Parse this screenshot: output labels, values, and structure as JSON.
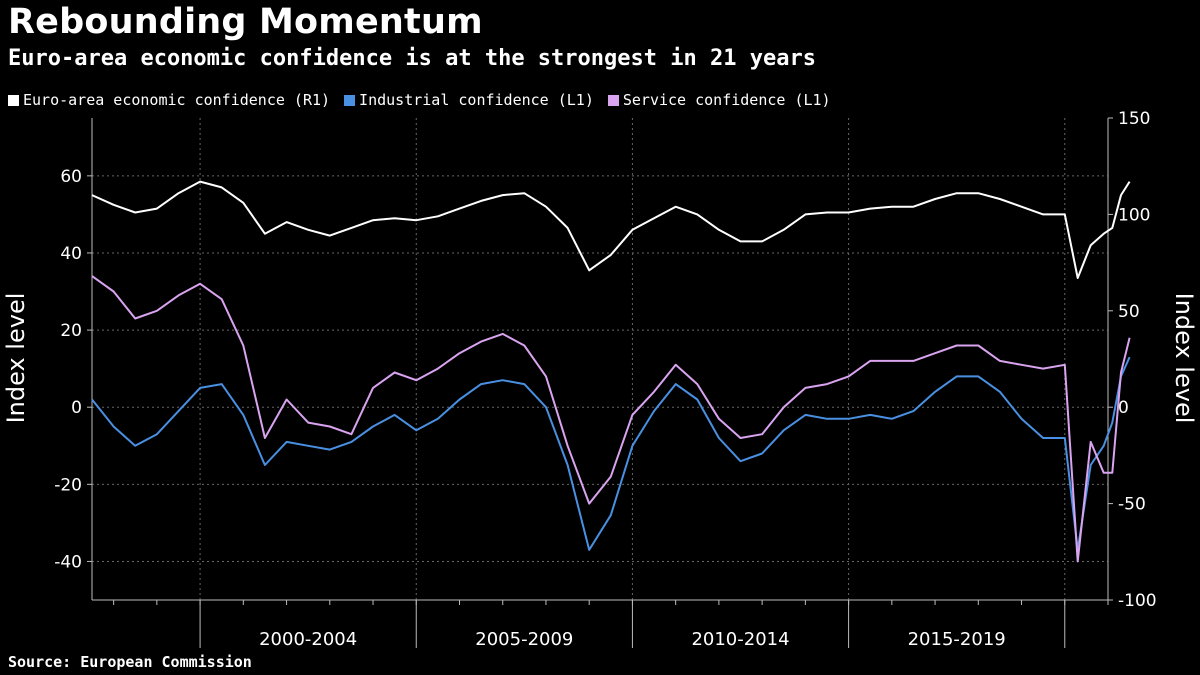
{
  "title": "Rebounding Momentum",
  "subtitle": "Euro-area economic confidence is at the strongest in 21 years",
  "source": "Source: European Commission",
  "chart_data": {
    "type": "line",
    "legend_position": "top-left",
    "grid": true,
    "x_unit": "year (decimal)",
    "x_range": [
      1997.5,
      2021.0
    ],
    "x_tick_labels": [
      "2000-2004",
      "2005-2009",
      "2010-2014",
      "2015-2019"
    ],
    "x_period_bounds": [
      2000,
      2005,
      2010,
      2015,
      2020
    ],
    "left_axis": {
      "label": "Index level",
      "range": [
        -50,
        75
      ],
      "ticks": [
        "60",
        "40",
        "20",
        "0",
        "-20",
        "-40"
      ],
      "tick_values": [
        60,
        40,
        20,
        0,
        -20,
        -40
      ]
    },
    "right_axis": {
      "label": "Index level",
      "range": [
        -100,
        150
      ],
      "ticks": [
        "150",
        "100",
        "50",
        "0",
        "-50",
        "-100"
      ],
      "tick_values": [
        150,
        100,
        50,
        0,
        -50,
        -100
      ]
    },
    "series": [
      {
        "name": "Euro-area economic confidence (R1)",
        "axis": "right",
        "color": "#ffffff",
        "points": [
          [
            1997.5,
            110
          ],
          [
            1998.0,
            105
          ],
          [
            1998.5,
            101
          ],
          [
            1999.0,
            103
          ],
          [
            1999.5,
            111
          ],
          [
            2000.0,
            117
          ],
          [
            2000.5,
            114
          ],
          [
            2001.0,
            106
          ],
          [
            2001.5,
            90
          ],
          [
            2002.0,
            96
          ],
          [
            2002.5,
            92
          ],
          [
            2003.0,
            89
          ],
          [
            2003.5,
            93
          ],
          [
            2004.0,
            97
          ],
          [
            2004.5,
            98
          ],
          [
            2005.0,
            97
          ],
          [
            2005.5,
            99
          ],
          [
            2006.0,
            103
          ],
          [
            2006.5,
            107
          ],
          [
            2007.0,
            110
          ],
          [
            2007.5,
            111
          ],
          [
            2008.0,
            104
          ],
          [
            2008.5,
            93
          ],
          [
            2009.0,
            71
          ],
          [
            2009.5,
            79
          ],
          [
            2010.0,
            92
          ],
          [
            2010.5,
            98
          ],
          [
            2011.0,
            104
          ],
          [
            2011.5,
            100
          ],
          [
            2012.0,
            92
          ],
          [
            2012.5,
            86
          ],
          [
            2013.0,
            86
          ],
          [
            2013.5,
            92
          ],
          [
            2014.0,
            100
          ],
          [
            2014.5,
            101
          ],
          [
            2015.0,
            101
          ],
          [
            2015.5,
            103
          ],
          [
            2016.0,
            104
          ],
          [
            2016.5,
            104
          ],
          [
            2017.0,
            108
          ],
          [
            2017.5,
            111
          ],
          [
            2018.0,
            111
          ],
          [
            2018.5,
            108
          ],
          [
            2019.0,
            104
          ],
          [
            2019.5,
            100
          ],
          [
            2020.0,
            100
          ],
          [
            2020.3,
            67
          ],
          [
            2020.6,
            84
          ],
          [
            2020.9,
            90
          ],
          [
            2021.1,
            93
          ],
          [
            2021.3,
            110
          ],
          [
            2021.5,
            117
          ]
        ]
      },
      {
        "name": "Industrial confidence (L1)",
        "axis": "left",
        "color": "#4a90e2",
        "points": [
          [
            1997.5,
            2
          ],
          [
            1998.0,
            -5
          ],
          [
            1998.5,
            -10
          ],
          [
            1999.0,
            -7
          ],
          [
            1999.5,
            -1
          ],
          [
            2000.0,
            5
          ],
          [
            2000.5,
            6
          ],
          [
            2001.0,
            -2
          ],
          [
            2001.5,
            -15
          ],
          [
            2002.0,
            -9
          ],
          [
            2002.5,
            -10
          ],
          [
            2003.0,
            -11
          ],
          [
            2003.5,
            -9
          ],
          [
            2004.0,
            -5
          ],
          [
            2004.5,
            -2
          ],
          [
            2005.0,
            -6
          ],
          [
            2005.5,
            -3
          ],
          [
            2006.0,
            2
          ],
          [
            2006.5,
            6
          ],
          [
            2007.0,
            7
          ],
          [
            2007.5,
            6
          ],
          [
            2008.0,
            0
          ],
          [
            2008.5,
            -15
          ],
          [
            2009.0,
            -37
          ],
          [
            2009.5,
            -28
          ],
          [
            2010.0,
            -10
          ],
          [
            2010.5,
            -1
          ],
          [
            2011.0,
            6
          ],
          [
            2011.5,
            2
          ],
          [
            2012.0,
            -8
          ],
          [
            2012.5,
            -14
          ],
          [
            2013.0,
            -12
          ],
          [
            2013.5,
            -6
          ],
          [
            2014.0,
            -2
          ],
          [
            2014.5,
            -3
          ],
          [
            2015.0,
            -3
          ],
          [
            2015.5,
            -2
          ],
          [
            2016.0,
            -3
          ],
          [
            2016.5,
            -1
          ],
          [
            2017.0,
            4
          ],
          [
            2017.5,
            8
          ],
          [
            2018.0,
            8
          ],
          [
            2018.5,
            4
          ],
          [
            2019.0,
            -3
          ],
          [
            2019.5,
            -8
          ],
          [
            2020.0,
            -8
          ],
          [
            2020.3,
            -37
          ],
          [
            2020.6,
            -15
          ],
          [
            2020.9,
            -10
          ],
          [
            2021.1,
            -4
          ],
          [
            2021.3,
            8
          ],
          [
            2021.5,
            13
          ]
        ]
      },
      {
        "name": "Service confidence (L1)",
        "axis": "left",
        "color": "#d9a3f0",
        "points": [
          [
            1997.5,
            34
          ],
          [
            1998.0,
            30
          ],
          [
            1998.5,
            23
          ],
          [
            1999.0,
            25
          ],
          [
            1999.5,
            29
          ],
          [
            2000.0,
            32
          ],
          [
            2000.5,
            28
          ],
          [
            2001.0,
            16
          ],
          [
            2001.5,
            -8
          ],
          [
            2002.0,
            2
          ],
          [
            2002.5,
            -4
          ],
          [
            2003.0,
            -5
          ],
          [
            2003.5,
            -7
          ],
          [
            2004.0,
            5
          ],
          [
            2004.5,
            9
          ],
          [
            2005.0,
            7
          ],
          [
            2005.5,
            10
          ],
          [
            2006.0,
            14
          ],
          [
            2006.5,
            17
          ],
          [
            2007.0,
            19
          ],
          [
            2007.5,
            16
          ],
          [
            2008.0,
            8
          ],
          [
            2008.5,
            -10
          ],
          [
            2009.0,
            -25
          ],
          [
            2009.5,
            -18
          ],
          [
            2010.0,
            -2
          ],
          [
            2010.5,
            4
          ],
          [
            2011.0,
            11
          ],
          [
            2011.5,
            6
          ],
          [
            2012.0,
            -3
          ],
          [
            2012.5,
            -8
          ],
          [
            2013.0,
            -7
          ],
          [
            2013.5,
            0
          ],
          [
            2014.0,
            5
          ],
          [
            2014.5,
            6
          ],
          [
            2015.0,
            8
          ],
          [
            2015.5,
            12
          ],
          [
            2016.0,
            12
          ],
          [
            2016.5,
            12
          ],
          [
            2017.0,
            14
          ],
          [
            2017.5,
            16
          ],
          [
            2018.0,
            16
          ],
          [
            2018.5,
            12
          ],
          [
            2019.0,
            11
          ],
          [
            2019.5,
            10
          ],
          [
            2020.0,
            11
          ],
          [
            2020.3,
            -40
          ],
          [
            2020.6,
            -9
          ],
          [
            2020.9,
            -17
          ],
          [
            2021.1,
            -17
          ],
          [
            2021.3,
            9
          ],
          [
            2021.5,
            18
          ]
        ]
      }
    ]
  }
}
